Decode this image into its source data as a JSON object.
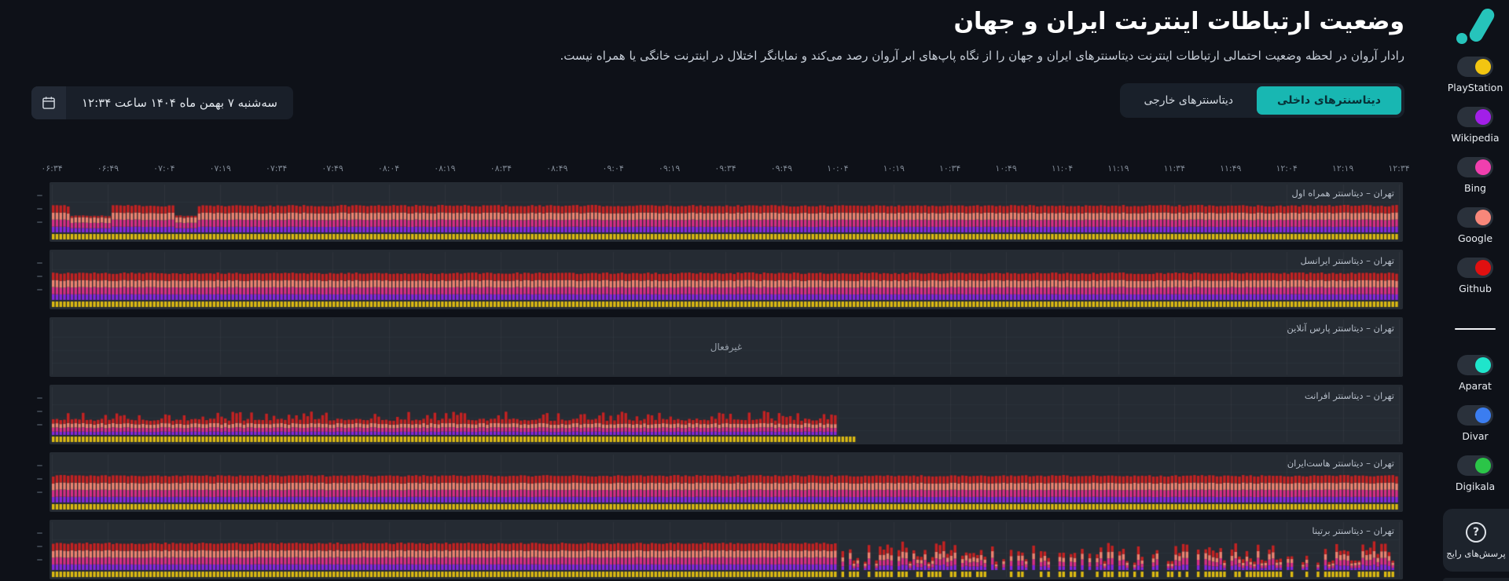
{
  "page": {
    "title": "وضعیت ارتباطات اینترنت ایران و جهان",
    "subtitle": "رادار آروان در لحظه وضعیت احتمالی ارتباطات اینترنت دیتاسنترهای ایران و جهان را از نگاه پاپ‌های ابر آروان رصد می‌کند و نمایانگر اختلال در اینترنت خانگی یا همراه نیست.",
    "background_color": "#0e1118",
    "accent_color": "#18b7b2"
  },
  "logo": {
    "name": "arvan-radar-logo",
    "color": "#26c4bb"
  },
  "datetime_picker": {
    "icon": "calendar-icon",
    "value": "سه‌شنبه ۷ بهمن ماه ۱۴۰۴ ساعت ۱۲:۳۴"
  },
  "tabs": [
    {
      "label": "دیتاسنترهای داخلی",
      "active": true
    },
    {
      "label": "دیتاسنترهای خارجی",
      "active": false
    }
  ],
  "services": {
    "foreign": [
      {
        "name": "PlayStation",
        "color": "#f2c511",
        "enabled": true
      },
      {
        "name": "Wikipedia",
        "color": "#a21fe8",
        "enabled": true
      },
      {
        "name": "Bing",
        "color": "#f03fae",
        "enabled": true
      },
      {
        "name": "Google",
        "color": "#f8877a",
        "enabled": true
      },
      {
        "name": "Github",
        "color": "#e01010",
        "enabled": true
      }
    ],
    "domestic": [
      {
        "name": "Aparat",
        "color": "#1fe5cb",
        "enabled": true
      },
      {
        "name": "Divar",
        "color": "#3b7df0",
        "enabled": true
      },
      {
        "name": "Digikala",
        "color": "#2bc548",
        "enabled": true
      }
    ]
  },
  "faq": {
    "label": "پرسش‌های رایج",
    "icon": "question-circle-icon"
  },
  "time_axis": {
    "interval_minutes": 15,
    "ticks": [
      "۰۶:۳۴",
      "۰۶:۴۹",
      "۰۷:۰۴",
      "۰۷:۱۹",
      "۰۷:۳۴",
      "۰۷:۴۹",
      "۰۸:۰۴",
      "۰۸:۱۹",
      "۰۸:۳۴",
      "۰۸:۴۹",
      "۰۹:۰۴",
      "۰۹:۱۹",
      "۰۹:۳۴",
      "۰۹:۴۹",
      "۱۰:۰۴",
      "۱۰:۱۹",
      "۱۰:۳۴",
      "۱۰:۴۹",
      "۱۱:۰۴",
      "۱۱:۱۹",
      "۱۱:۳۴",
      "۱۱:۴۹",
      "۱۲:۰۴",
      "۱۲:۱۹",
      "۱۲:۳۴"
    ]
  },
  "chart_data": {
    "type": "bar",
    "subtype": "per-minute stacked status bars, one bar per minute",
    "x_range_minutes": [
      0,
      360
    ],
    "x_start_label": "۰۶:۳۴",
    "x_end_label": "۱۲:۳۴",
    "grid": "vertical line every 15 minutes, 3 faint horizontal lines",
    "stack_bottom_to_top": [
      "PlayStation",
      "Wikipedia",
      "Bing",
      "Google",
      "Github"
    ],
    "colors": {
      "playstation": "#dcba12",
      "wikipedia": "#8527dd",
      "bing": "#d62e86",
      "google": "#ee8270",
      "github": "#c42222"
    },
    "rows": [
      {
        "label": "تهران – دیتاسنتر همراه اول",
        "status": "active",
        "pattern": "uniform_with_dips",
        "dips": [
          {
            "from_min": 5,
            "to_min": 15
          },
          {
            "from_min": 33,
            "to_min": 38
          }
        ]
      },
      {
        "label": "تهران – دیتاسنتر ایرانسل",
        "status": "active",
        "pattern": "uniform"
      },
      {
        "label": "تهران – دیتاسنتر پارس آنلاین",
        "status": "inactive",
        "inactive_label": "غیرفعال"
      },
      {
        "label": "تهران – دیتاسنتر افرانت",
        "status": "active",
        "pattern": "short_with_spikes",
        "data_end_min": 210,
        "yellow_tail_end_min": 215
      },
      {
        "label": "تهران – دیتاسنتر هاست‌ایران",
        "status": "active",
        "pattern": "uniform"
      },
      {
        "label": "تهران – دیتاسنتر برتینا",
        "status": "active",
        "pattern": "degraded_after",
        "degrade_start_min": 210
      }
    ]
  }
}
